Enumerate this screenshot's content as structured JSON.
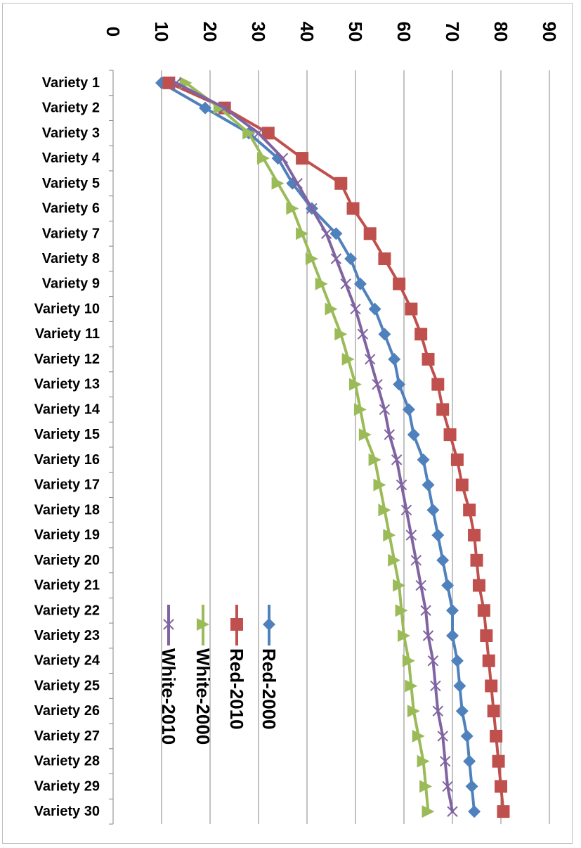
{
  "chart_data": {
    "type": "line",
    "orientation": "rotated-90-clockwise",
    "title": "",
    "xlabel": "",
    "ylabel": "",
    "categories": [
      "Variety 1",
      "Variety 2",
      "Variety 3",
      "Variety 4",
      "Variety 5",
      "Variety 6",
      "Variety 7",
      "Variety 8",
      "Variety 9",
      "Variety 10",
      "Variety 11",
      "Variety 12",
      "Variety 13",
      "Variety 14",
      "Variety 15",
      "Variety 16",
      "Variety 17",
      "Variety 18",
      "Variety 19",
      "Variety 20",
      "Variety 21",
      "Variety 22",
      "Variety 23",
      "Variety 24",
      "Variety 25",
      "Variety 26",
      "Variety 27",
      "Variety 28",
      "Variety 29",
      "Variety 30"
    ],
    "ylim": [
      0,
      90
    ],
    "yticks": [
      "0",
      "10",
      "20",
      "30",
      "40",
      "50",
      "60",
      "70",
      "80",
      "90"
    ],
    "grid": true,
    "legend_position": "bottom-left",
    "series": [
      {
        "name": "Red-2000",
        "color": "#4f81bd",
        "marker": "diamond",
        "values": [
          10,
          19,
          28,
          34,
          37,
          41,
          46,
          49,
          51,
          54,
          56,
          58,
          59,
          61,
          62,
          64,
          65,
          66,
          67,
          68,
          69,
          70,
          70,
          71,
          71.5,
          72,
          73,
          73.5,
          74,
          74.5
        ]
      },
      {
        "name": "Red-2010",
        "color": "#c0504d",
        "marker": "square",
        "values": [
          11.5,
          23,
          32,
          39,
          47,
          49.5,
          53,
          56,
          59,
          61.5,
          63.5,
          65,
          67,
          68,
          69.5,
          71,
          72,
          73.5,
          74.5,
          75,
          75.5,
          76.5,
          77,
          77.5,
          78,
          78.5,
          79,
          79.5,
          80,
          80.5
        ]
      },
      {
        "name": "White-2000",
        "color": "#9bbb59",
        "marker": "triangle",
        "values": [
          15,
          22,
          28,
          31,
          34,
          37,
          39,
          41,
          43,
          45,
          47,
          48.5,
          50,
          51,
          52,
          54,
          55,
          56,
          57,
          58,
          59,
          59.5,
          60,
          61,
          61.5,
          62,
          63,
          64,
          64.5,
          65
        ]
      },
      {
        "name": "White-2010",
        "color": "#8064a2",
        "marker": "x",
        "values": [
          13,
          23,
          30,
          35,
          38,
          41,
          44,
          46,
          48,
          50,
          51.5,
          53,
          54.5,
          56,
          57,
          58.5,
          59.5,
          60.5,
          61.5,
          62.5,
          63.5,
          64.5,
          65,
          66,
          66.5,
          67,
          68,
          68.5,
          69,
          70
        ]
      }
    ]
  }
}
